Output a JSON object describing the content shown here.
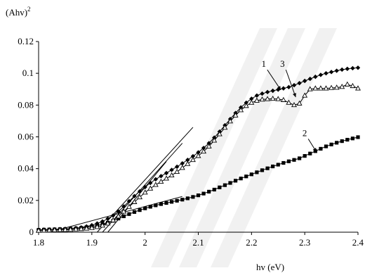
{
  "chart_data": {
    "type": "scatter",
    "ylabel": "(Ahv)",
    "ylabel_superscript": "2",
    "xlabel": "hv (eV)",
    "xlim": [
      1.8,
      2.4
    ],
    "ylim": [
      0,
      0.12
    ],
    "xticks": [
      "1.8",
      "1.9",
      "2",
      "2.1",
      "2.2",
      "2.3",
      "2.4"
    ],
    "yticks": [
      "0",
      "0.02",
      "0.04",
      "0.06",
      "0.08",
      "0.1",
      "0.12"
    ],
    "grid": false,
    "series": [
      {
        "name": "1",
        "marker": "diamond",
        "x": [
          1.8,
          1.81,
          1.82,
          1.83,
          1.84,
          1.85,
          1.86,
          1.87,
          1.88,
          1.89,
          1.9,
          1.91,
          1.92,
          1.93,
          1.94,
          1.95,
          1.96,
          1.97,
          1.98,
          1.99,
          2.0,
          2.01,
          2.02,
          2.03,
          2.04,
          2.05,
          2.06,
          2.07,
          2.08,
          2.09,
          2.1,
          2.11,
          2.12,
          2.13,
          2.14,
          2.15,
          2.16,
          2.17,
          2.18,
          2.19,
          2.2,
          2.21,
          2.22,
          2.23,
          2.24,
          2.25,
          2.26,
          2.27,
          2.28,
          2.29,
          2.3,
          2.31,
          2.32,
          2.33,
          2.34,
          2.35,
          2.36,
          2.37,
          2.38,
          2.39,
          2.4
        ],
        "y": [
          0.0015,
          0.0016,
          0.0017,
          0.0018,
          0.0019,
          0.0021,
          0.0023,
          0.0026,
          0.003,
          0.0036,
          0.0044,
          0.0055,
          0.0068,
          0.0085,
          0.0105,
          0.013,
          0.0162,
          0.0195,
          0.0227,
          0.0257,
          0.0284,
          0.031,
          0.0333,
          0.0353,
          0.0372,
          0.0392,
          0.0412,
          0.0433,
          0.0455,
          0.0478,
          0.0502,
          0.053,
          0.056,
          0.0595,
          0.0633,
          0.0673,
          0.0712,
          0.075,
          0.0785,
          0.0815,
          0.084,
          0.086,
          0.0872,
          0.0882,
          0.089,
          0.0897,
          0.0905,
          0.0913,
          0.0925,
          0.0938,
          0.0952,
          0.0965,
          0.0978,
          0.099,
          0.1,
          0.1008,
          0.1016,
          0.1023,
          0.1028,
          0.1032,
          0.1035
        ]
      },
      {
        "name": "2",
        "marker": "square",
        "x": [
          1.8,
          1.81,
          1.82,
          1.83,
          1.84,
          1.85,
          1.86,
          1.87,
          1.88,
          1.89,
          1.9,
          1.91,
          1.92,
          1.93,
          1.94,
          1.95,
          1.96,
          1.97,
          1.98,
          1.99,
          2.0,
          2.01,
          2.02,
          2.03,
          2.04,
          2.05,
          2.06,
          2.07,
          2.08,
          2.09,
          2.1,
          2.11,
          2.12,
          2.13,
          2.14,
          2.15,
          2.16,
          2.17,
          2.18,
          2.19,
          2.2,
          2.21,
          2.22,
          2.23,
          2.24,
          2.25,
          2.26,
          2.27,
          2.28,
          2.29,
          2.3,
          2.31,
          2.32,
          2.33,
          2.34,
          2.35,
          2.36,
          2.37,
          2.38,
          2.39,
          2.4
        ],
        "y": [
          0.0015,
          0.0016,
          0.0017,
          0.0018,
          0.0019,
          0.002,
          0.0022,
          0.0024,
          0.0027,
          0.0031,
          0.0036,
          0.0042,
          0.005,
          0.006,
          0.0072,
          0.0086,
          0.01,
          0.0114,
          0.0127,
          0.0139,
          0.015,
          0.016,
          0.0169,
          0.0177,
          0.0184,
          0.0191,
          0.0198,
          0.0205,
          0.0213,
          0.0222,
          0.0232,
          0.0243,
          0.0255,
          0.0268,
          0.0282,
          0.0296,
          0.031,
          0.0324,
          0.0338,
          0.0351,
          0.0364,
          0.0377,
          0.039,
          0.0402,
          0.0414,
          0.0425,
          0.0436,
          0.0446,
          0.0455,
          0.0465,
          0.048,
          0.0495,
          0.051,
          0.0525,
          0.054,
          0.0552,
          0.0563,
          0.0573,
          0.0582,
          0.059,
          0.0598
        ]
      },
      {
        "name": "3",
        "marker": "triangle-open",
        "x": [
          1.8,
          1.81,
          1.82,
          1.83,
          1.84,
          1.85,
          1.86,
          1.87,
          1.88,
          1.89,
          1.9,
          1.91,
          1.92,
          1.93,
          1.94,
          1.95,
          1.96,
          1.97,
          1.98,
          1.99,
          2.0,
          2.01,
          2.02,
          2.03,
          2.04,
          2.05,
          2.06,
          2.07,
          2.08,
          2.09,
          2.1,
          2.11,
          2.12,
          2.13,
          2.14,
          2.15,
          2.16,
          2.17,
          2.18,
          2.19,
          2.2,
          2.21,
          2.22,
          2.23,
          2.24,
          2.25,
          2.26,
          2.27,
          2.28,
          2.29,
          2.3,
          2.31,
          2.32,
          2.33,
          2.34,
          2.35,
          2.36,
          2.37,
          2.38,
          2.39,
          2.4
        ],
        "y": [
          0.001,
          0.0011,
          0.0012,
          0.0013,
          0.0014,
          0.0015,
          0.0016,
          0.0018,
          0.002,
          0.0023,
          0.0027,
          0.0033,
          0.0042,
          0.0055,
          0.0075,
          0.01,
          0.013,
          0.016,
          0.019,
          0.022,
          0.025,
          0.0275,
          0.0298,
          0.0318,
          0.0338,
          0.0358,
          0.038,
          0.0405,
          0.043,
          0.0455,
          0.048,
          0.0508,
          0.054,
          0.0577,
          0.0617,
          0.0658,
          0.0698,
          0.0735,
          0.0768,
          0.0795,
          0.0815,
          0.0828,
          0.0835,
          0.0838,
          0.084,
          0.0838,
          0.0832,
          0.0815,
          0.08,
          0.081,
          0.086,
          0.09,
          0.0905,
          0.0905,
          0.0905,
          0.0908,
          0.091,
          0.0915,
          0.093,
          0.092,
          0.0905
        ]
      }
    ],
    "tangent_lines": [
      {
        "x1": 1.91,
        "y1": 0.0,
        "x2": 2.09,
        "y2": 0.066
      },
      {
        "x1": 1.93,
        "y1": 0.0,
        "x2": 2.04,
        "y2": 0.0445
      },
      {
        "x1": 1.92,
        "y1": 0.0,
        "x2": 2.07,
        "y2": 0.056
      },
      {
        "x1": 1.82,
        "y1": 0.0,
        "x2": 2.07,
        "y2": 0.0225
      }
    ],
    "annotations": [
      {
        "text": "1",
        "x": 2.223,
        "y": 0.104,
        "arrow_to_x": 2.255,
        "arrow_to_y": 0.0895
      },
      {
        "text": "3",
        "x": 2.258,
        "y": 0.104,
        "arrow_to_x": 2.283,
        "arrow_to_y": 0.085
      },
      {
        "text": "2",
        "x": 2.3,
        "y": 0.0605,
        "arrow_to_x": 2.322,
        "arrow_to_y": 0.0505
      }
    ]
  }
}
